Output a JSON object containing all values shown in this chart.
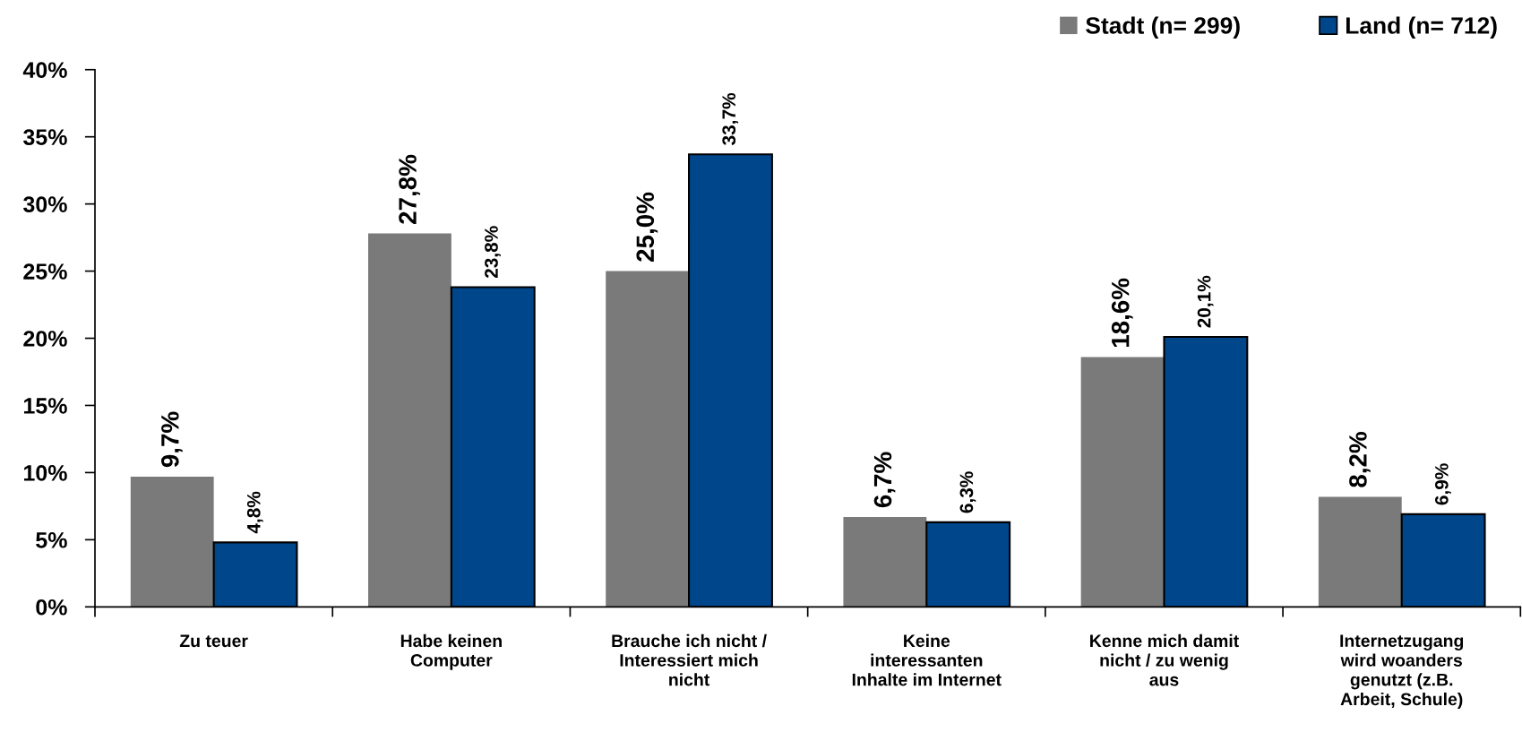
{
  "chart_data": {
    "type": "bar",
    "categories": [
      "Zu teuer",
      "Habe keinen\nComputer",
      "Brauche ich nicht /\nInteressiert mich\nnicht",
      "Keine\ninteressanten\nInhalte im Internet",
      "Kenne mich damit\nnicht / zu wenig\naus",
      "Internetzugang\nwird woanders\ngenutzt (z.B.\nArbeit, Schule)"
    ],
    "series": [
      {
        "name": "Stadt (n= 299)",
        "color": "#7a7a7a",
        "values": [
          9.7,
          27.8,
          25.0,
          6.7,
          18.6,
          8.2
        ],
        "value_labels": [
          "9,7%",
          "27,8%",
          "25,0%",
          "6,7%",
          "18,6%",
          "8,2%"
        ]
      },
      {
        "name": "Land (n= 712)",
        "color": "#00468b",
        "values": [
          4.8,
          23.8,
          33.7,
          6.3,
          20.1,
          6.9
        ],
        "value_labels": [
          "4,8%",
          "23,8%",
          "33,7%",
          "6,3%",
          "20,1%",
          "6,9%"
        ]
      }
    ],
    "ylim": [
      0,
      40
    ],
    "yticks": [
      {
        "value": 0,
        "label": "0%"
      },
      {
        "value": 5,
        "label": "5%"
      },
      {
        "value": 10,
        "label": "10%"
      },
      {
        "value": 15,
        "label": "15%"
      },
      {
        "value": 20,
        "label": "20%"
      },
      {
        "value": 25,
        "label": "25%"
      },
      {
        "value": 30,
        "label": "30%"
      },
      {
        "value": 35,
        "label": "35%"
      },
      {
        "value": 40,
        "label": "40%"
      }
    ],
    "grid": false,
    "legend": "top right"
  }
}
